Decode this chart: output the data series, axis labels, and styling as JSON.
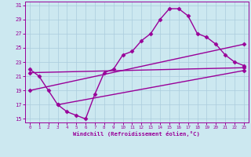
{
  "bg_color": "#cce8f0",
  "grid_color": "#aaccdd",
  "line_color": "#990099",
  "xlim": [
    -0.5,
    23.5
  ],
  "ylim": [
    14.5,
    31.5
  ],
  "xticks": [
    0,
    1,
    2,
    3,
    4,
    5,
    6,
    7,
    8,
    9,
    10,
    11,
    12,
    13,
    14,
    15,
    16,
    17,
    18,
    19,
    20,
    21,
    22,
    23
  ],
  "yticks": [
    15,
    17,
    19,
    21,
    23,
    25,
    27,
    29,
    31
  ],
  "line1_x": [
    0,
    1,
    2,
    3,
    4,
    5,
    6,
    7,
    8,
    9,
    10,
    11,
    12,
    13,
    14,
    15,
    16,
    17,
    18,
    19,
    20,
    21,
    22,
    23
  ],
  "line1_y": [
    22,
    21,
    19,
    17,
    16,
    15.5,
    15,
    18.5,
    21.5,
    22,
    24,
    24.5,
    26,
    27,
    29,
    30.5,
    30.5,
    29.5,
    27,
    26.5,
    25.5,
    24,
    23,
    22.5
  ],
  "line2_x": [
    0,
    23
  ],
  "line2_y": [
    21.5,
    22.2
  ],
  "line3_x": [
    0,
    23
  ],
  "line3_y": [
    19.0,
    25.5
  ],
  "line4_x": [
    3,
    23
  ],
  "line4_y": [
    17.0,
    21.8
  ],
  "xlabel": "Windchill (Refroidissement éolien,°C)",
  "marker": "D",
  "markersize": 2.5,
  "linewidth": 1.0
}
